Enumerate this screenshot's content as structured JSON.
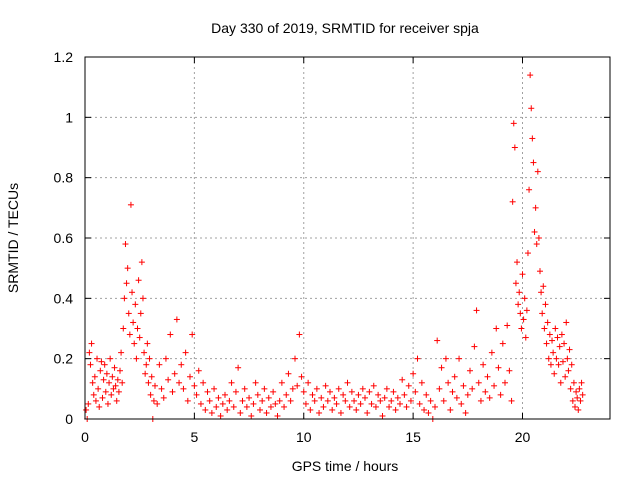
{
  "chart_data": {
    "type": "scatter",
    "title": "Day 330 of 2019, SRMTID for receiver spja",
    "xlabel": "GPS time / hours",
    "ylabel": "SRMTID / TECUs",
    "xlim": [
      0,
      24
    ],
    "ylim": [
      0,
      1.2
    ],
    "x_ticks": [
      0,
      5,
      10,
      15,
      20
    ],
    "x_tick_labels": [
      "0",
      "5",
      "10",
      "15",
      "20"
    ],
    "y_ticks": [
      0,
      0.2,
      0.4,
      0.6,
      0.8,
      1.0,
      1.2
    ],
    "y_tick_labels": [
      "0",
      "0.2",
      "0.4",
      "0.6",
      "0.8",
      "1",
      "1.2"
    ],
    "grid": true,
    "marker": "+",
    "color": "#ff0000",
    "series": [
      {
        "name": "SRMTID",
        "points": [
          [
            0.05,
            0.03
          ],
          [
            0.1,
            0.0
          ],
          [
            0.15,
            0.05
          ],
          [
            0.2,
            0.22
          ],
          [
            0.25,
            0.18
          ],
          [
            0.3,
            0.25
          ],
          [
            0.35,
            0.12
          ],
          [
            0.4,
            0.08
          ],
          [
            0.45,
            0.14
          ],
          [
            0.5,
            0.06
          ],
          [
            0.55,
            0.2
          ],
          [
            0.6,
            0.1
          ],
          [
            0.65,
            0.04
          ],
          [
            0.7,
            0.16
          ],
          [
            0.75,
            0.19
          ],
          [
            0.8,
            0.07
          ],
          [
            0.85,
            0.13
          ],
          [
            0.9,
            0.18
          ],
          [
            0.95,
            0.09
          ],
          [
            1.0,
            0.15
          ],
          [
            1.05,
            0.05
          ],
          [
            1.1,
            0.12
          ],
          [
            1.15,
            0.2
          ],
          [
            1.2,
            0.08
          ],
          [
            1.25,
            0.14
          ],
          [
            1.3,
            0.1
          ],
          [
            1.35,
            0.17
          ],
          [
            1.4,
            0.11
          ],
          [
            1.45,
            0.06
          ],
          [
            1.5,
            0.13
          ],
          [
            1.55,
            0.09
          ],
          [
            1.6,
            0.16
          ],
          [
            1.65,
            0.22
          ],
          [
            1.7,
            0.12
          ],
          [
            1.75,
            0.3
          ],
          [
            1.8,
            0.4
          ],
          [
            1.85,
            0.58
          ],
          [
            1.9,
            0.45
          ],
          [
            1.95,
            0.5
          ],
          [
            2.0,
            0.35
          ],
          [
            2.05,
            0.28
          ],
          [
            2.1,
            0.71
          ],
          [
            2.15,
            0.42
          ],
          [
            2.2,
            0.32
          ],
          [
            2.25,
            0.25
          ],
          [
            2.3,
            0.38
          ],
          [
            2.35,
            0.2
          ],
          [
            2.4,
            0.3
          ],
          [
            2.45,
            0.46
          ],
          [
            2.5,
            0.27
          ],
          [
            2.55,
            0.35
          ],
          [
            2.6,
            0.52
          ],
          [
            2.65,
            0.4
          ],
          [
            2.7,
            0.22
          ],
          [
            2.75,
            0.15
          ],
          [
            2.8,
            0.18
          ],
          [
            2.85,
            0.25
          ],
          [
            2.9,
            0.12
          ],
          [
            2.95,
            0.2
          ],
          [
            3.0,
            0.08
          ],
          [
            3.05,
            0.14
          ],
          [
            3.1,
            0.0
          ],
          [
            3.15,
            0.06
          ],
          [
            3.2,
            0.11
          ],
          [
            3.3,
            0.05
          ],
          [
            3.4,
            0.18
          ],
          [
            3.5,
            0.1
          ],
          [
            3.6,
            0.07
          ],
          [
            3.7,
            0.2
          ],
          [
            3.8,
            0.13
          ],
          [
            3.9,
            0.28
          ],
          [
            4.0,
            0.09
          ],
          [
            4.1,
            0.15
          ],
          [
            4.2,
            0.33
          ],
          [
            4.3,
            0.12
          ],
          [
            4.4,
            0.18
          ],
          [
            4.5,
            0.1
          ],
          [
            4.6,
            0.22
          ],
          [
            4.7,
            0.06
          ],
          [
            4.8,
            0.14
          ],
          [
            4.9,
            0.28
          ],
          [
            5.0,
            0.11
          ],
          [
            5.1,
            0.08
          ],
          [
            5.2,
            0.16
          ],
          [
            5.3,
            0.05
          ],
          [
            5.4,
            0.12
          ],
          [
            5.5,
            0.03
          ],
          [
            5.6,
            0.09
          ],
          [
            5.7,
            0.06
          ],
          [
            5.8,
            0.02
          ],
          [
            5.9,
            0.1
          ],
          [
            6.0,
            0.04
          ],
          [
            6.1,
            0.07
          ],
          [
            6.2,
            0.01
          ],
          [
            6.3,
            0.05
          ],
          [
            6.4,
            0.08
          ],
          [
            6.5,
            0.03
          ],
          [
            6.6,
            0.06
          ],
          [
            6.7,
            0.12
          ],
          [
            6.8,
            0.04
          ],
          [
            6.9,
            0.09
          ],
          [
            7.0,
            0.17
          ],
          [
            7.1,
            0.02
          ],
          [
            7.2,
            0.06
          ],
          [
            7.3,
            0.1
          ],
          [
            7.4,
            0.04
          ],
          [
            7.5,
            0.07
          ],
          [
            7.6,
            0.01
          ],
          [
            7.7,
            0.05
          ],
          [
            7.8,
            0.12
          ],
          [
            7.9,
            0.08
          ],
          [
            8.0,
            0.03
          ],
          [
            8.1,
            0.06
          ],
          [
            8.2,
            0.1
          ],
          [
            8.3,
            0.02
          ],
          [
            8.4,
            0.07
          ],
          [
            8.5,
            0.04
          ],
          [
            8.6,
            0.09
          ],
          [
            8.7,
            0.05
          ],
          [
            8.8,
            0.01
          ],
          [
            8.9,
            0.06
          ],
          [
            9.0,
            0.12
          ],
          [
            9.1,
            0.04
          ],
          [
            9.2,
            0.08
          ],
          [
            9.3,
            0.15
          ],
          [
            9.4,
            0.06
          ],
          [
            9.5,
            0.1
          ],
          [
            9.6,
            0.2
          ],
          [
            9.7,
            0.11
          ],
          [
            9.8,
            0.28
          ],
          [
            9.9,
            0.14
          ],
          [
            10.0,
            0.09
          ],
          [
            10.1,
            0.05
          ],
          [
            10.2,
            0.12
          ],
          [
            10.3,
            0.03
          ],
          [
            10.4,
            0.08
          ],
          [
            10.5,
            0.06
          ],
          [
            10.6,
            0.1
          ],
          [
            10.7,
            0.02
          ],
          [
            10.8,
            0.07
          ],
          [
            10.9,
            0.04
          ],
          [
            11.0,
            0.11
          ],
          [
            11.1,
            0.06
          ],
          [
            11.2,
            0.09
          ],
          [
            11.3,
            0.03
          ],
          [
            11.4,
            0.07
          ],
          [
            11.5,
            0.05
          ],
          [
            11.6,
            0.1
          ],
          [
            11.7,
            0.02
          ],
          [
            11.8,
            0.08
          ],
          [
            11.9,
            0.06
          ],
          [
            12.0,
            0.12
          ],
          [
            12.1,
            0.04
          ],
          [
            12.2,
            0.09
          ],
          [
            12.3,
            0.06
          ],
          [
            12.4,
            0.03
          ],
          [
            12.5,
            0.08
          ],
          [
            12.6,
            0.05
          ],
          [
            12.7,
            0.1
          ],
          [
            12.8,
            0.07
          ],
          [
            12.9,
            0.02
          ],
          [
            13.0,
            0.09
          ],
          [
            13.1,
            0.05
          ],
          [
            13.2,
            0.11
          ],
          [
            13.3,
            0.04
          ],
          [
            13.4,
            0.08
          ],
          [
            13.5,
            0.06
          ],
          [
            13.6,
            0.01
          ],
          [
            13.7,
            0.07
          ],
          [
            13.8,
            0.1
          ],
          [
            13.9,
            0.04
          ],
          [
            14.0,
            0.06
          ],
          [
            14.1,
            0.09
          ],
          [
            14.2,
            0.03
          ],
          [
            14.3,
            0.07
          ],
          [
            14.4,
            0.05
          ],
          [
            14.5,
            0.13
          ],
          [
            14.6,
            0.08
          ],
          [
            14.7,
            0.04
          ],
          [
            14.8,
            0.11
          ],
          [
            14.9,
            0.06
          ],
          [
            15.0,
            0.15
          ],
          [
            15.1,
            0.09
          ],
          [
            15.2,
            0.2
          ],
          [
            15.3,
            0.05
          ],
          [
            15.4,
            0.12
          ],
          [
            15.5,
            0.03
          ],
          [
            15.6,
            0.08
          ],
          [
            15.7,
            0.02
          ],
          [
            15.8,
            0.06
          ],
          [
            15.9,
            0.0
          ],
          [
            16.0,
            0.04
          ],
          [
            16.1,
            0.26
          ],
          [
            16.2,
            0.1
          ],
          [
            16.3,
            0.17
          ],
          [
            16.4,
            0.06
          ],
          [
            16.5,
            0.2
          ],
          [
            16.6,
            0.12
          ],
          [
            16.7,
            0.03
          ],
          [
            16.8,
            0.09
          ],
          [
            16.9,
            0.14
          ],
          [
            17.0,
            0.07
          ],
          [
            17.1,
            0.2
          ],
          [
            17.2,
            0.05
          ],
          [
            17.3,
            0.11
          ],
          [
            17.4,
            0.02
          ],
          [
            17.5,
            0.08
          ],
          [
            17.6,
            0.16
          ],
          [
            17.7,
            0.1
          ],
          [
            17.8,
            0.24
          ],
          [
            17.9,
            0.36
          ],
          [
            18.0,
            0.12
          ],
          [
            18.1,
            0.06
          ],
          [
            18.2,
            0.18
          ],
          [
            18.3,
            0.09
          ],
          [
            18.4,
            0.14
          ],
          [
            18.5,
            0.07
          ],
          [
            18.6,
            0.22
          ],
          [
            18.7,
            0.11
          ],
          [
            18.8,
            0.3
          ],
          [
            18.9,
            0.17
          ],
          [
            19.0,
            0.08
          ],
          [
            19.1,
            0.25
          ],
          [
            19.2,
            0.12
          ],
          [
            19.3,
            0.31
          ],
          [
            19.4,
            0.16
          ],
          [
            19.5,
            0.06
          ],
          [
            19.55,
            0.72
          ],
          [
            19.6,
            0.98
          ],
          [
            19.65,
            0.9
          ],
          [
            19.7,
            0.45
          ],
          [
            19.75,
            0.52
          ],
          [
            19.8,
            0.38
          ],
          [
            19.85,
            0.42
          ],
          [
            19.9,
            0.35
          ],
          [
            19.95,
            0.3
          ],
          [
            20.0,
            0.48
          ],
          [
            20.05,
            0.33
          ],
          [
            20.1,
            0.4
          ],
          [
            20.15,
            0.27
          ],
          [
            20.2,
            0.36
          ],
          [
            20.25,
            0.55
          ],
          [
            20.3,
            0.76
          ],
          [
            20.35,
            1.14
          ],
          [
            20.4,
            1.03
          ],
          [
            20.45,
            0.93
          ],
          [
            20.5,
            0.85
          ],
          [
            20.55,
            0.62
          ],
          [
            20.6,
            0.7
          ],
          [
            20.65,
            0.58
          ],
          [
            20.7,
            0.82
          ],
          [
            20.75,
            0.6
          ],
          [
            20.8,
            0.49
          ],
          [
            20.85,
            0.42
          ],
          [
            20.9,
            0.35
          ],
          [
            20.95,
            0.44
          ],
          [
            21.0,
            0.3
          ],
          [
            21.05,
            0.38
          ],
          [
            21.1,
            0.25
          ],
          [
            21.15,
            0.32
          ],
          [
            21.2,
            0.2
          ],
          [
            21.25,
            0.28
          ],
          [
            21.3,
            0.18
          ],
          [
            21.35,
            0.26
          ],
          [
            21.4,
            0.22
          ],
          [
            21.45,
            0.15
          ],
          [
            21.5,
            0.3
          ],
          [
            21.55,
            0.2
          ],
          [
            21.6,
            0.27
          ],
          [
            21.65,
            0.18
          ],
          [
            21.7,
            0.24
          ],
          [
            21.75,
            0.12
          ],
          [
            21.8,
            0.28
          ],
          [
            21.85,
            0.19
          ],
          [
            21.9,
            0.25
          ],
          [
            21.95,
            0.14
          ],
          [
            22.0,
            0.32
          ],
          [
            22.05,
            0.2
          ],
          [
            22.1,
            0.16
          ],
          [
            22.15,
            0.23
          ],
          [
            22.2,
            0.1
          ],
          [
            22.25,
            0.18
          ],
          [
            22.3,
            0.06
          ],
          [
            22.35,
            0.12
          ],
          [
            22.4,
            0.04
          ],
          [
            22.45,
            0.09
          ],
          [
            22.5,
            0.07
          ],
          [
            22.55,
            0.03
          ],
          [
            22.6,
            0.1
          ],
          [
            22.65,
            0.06
          ],
          [
            22.7,
            0.12
          ],
          [
            22.75,
            0.08
          ]
        ]
      }
    ]
  }
}
